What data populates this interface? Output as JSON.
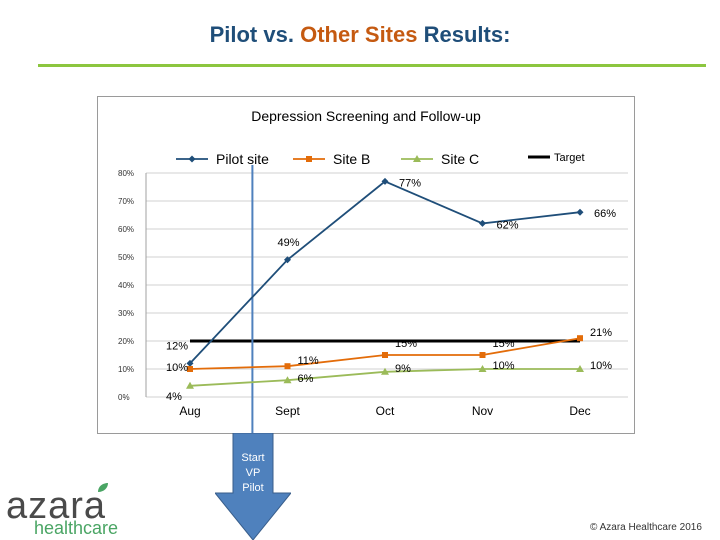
{
  "page": {
    "title_parts": [
      "Pilot",
      "vs.",
      "Other Sites",
      "Results:"
    ],
    "accent_green": "#8cc63f",
    "title_blue": "#1f4e79",
    "title_orange": "#c55a11"
  },
  "chart_data": {
    "type": "line",
    "title": "Depression Screening and Follow-up",
    "categories": [
      "Aug",
      "Sept",
      "Oct",
      "Nov",
      "Dec"
    ],
    "ylim": [
      0,
      80
    ],
    "yticks": [
      0,
      10,
      20,
      30,
      40,
      50,
      60,
      70,
      80
    ],
    "ytick_labels": [
      "0%",
      "10%",
      "20%",
      "30%",
      "40%",
      "50%",
      "60%",
      "70%",
      "80%"
    ],
    "grid": true,
    "series": [
      {
        "name": "Pilot site",
        "values": [
          12,
          49,
          77,
          62,
          66
        ],
        "labels": [
          "12%",
          "49%",
          "77%",
          "62%",
          "66%"
        ],
        "color": "#1f4e79",
        "marker": "diamond"
      },
      {
        "name": "Site B",
        "values": [
          10,
          11,
          15,
          15,
          21
        ],
        "labels": [
          "10%",
          "11%",
          "15%",
          "15%",
          "21%"
        ],
        "color": "#e36c09",
        "marker": "square"
      },
      {
        "name": "Site C",
        "values": [
          4,
          6,
          9,
          10,
          10
        ],
        "labels": [
          "4%",
          "6%",
          "9%",
          "10%",
          "10%"
        ],
        "color": "#9bbb59",
        "marker": "triangle"
      }
    ],
    "target": {
      "name": "Target",
      "value": 20,
      "color": "#000000"
    },
    "marker_line": {
      "position": "between Aug and Sept",
      "color": "#4f81bd"
    }
  },
  "annotation": {
    "arrow_text": [
      "Start",
      "VP",
      "Pilot"
    ],
    "color": "#4f81bd"
  },
  "logo": {
    "main": "azara",
    "sub": "healthcare"
  },
  "footer": {
    "copyright": "© Azara Healthcare 2016"
  }
}
